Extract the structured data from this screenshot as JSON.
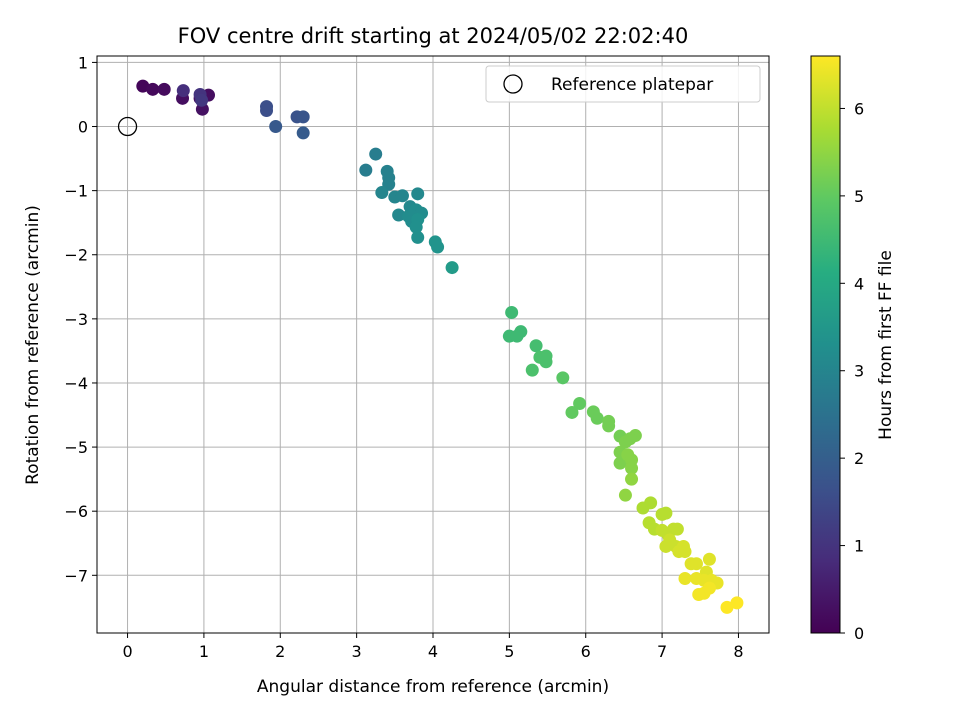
{
  "chart_data": {
    "type": "scatter",
    "title": "FOV centre drift starting at 2024/05/02 22:02:40",
    "xlabel": "Angular distance from reference (arcmin)",
    "ylabel": "Rotation from reference (arcmin)",
    "xlim": [
      -0.4,
      8.4
    ],
    "ylim": [
      -7.9,
      1.1
    ],
    "xticks": [
      0,
      1,
      2,
      3,
      4,
      5,
      6,
      7,
      8
    ],
    "yticks": [
      1,
      0,
      -1,
      -2,
      -3,
      -4,
      -5,
      -6,
      -7
    ],
    "xtick_labels": [
      "0",
      "1",
      "2",
      "3",
      "4",
      "5",
      "6",
      "7",
      "8"
    ],
    "ytick_labels": [
      "1",
      "0",
      "−1",
      "−2",
      "−3",
      "−4",
      "−5",
      "−6",
      "−7"
    ],
    "grid": true,
    "legend": {
      "placement": "top-right",
      "entries": [
        "Reference platepar"
      ]
    },
    "reference_point": {
      "x": 0,
      "y": 0,
      "label": "Reference platepar"
    },
    "colorbar": {
      "label": "Hours from first FF file",
      "colormap": "viridis",
      "range": [
        0,
        6.6
      ],
      "ticks": [
        0,
        1,
        2,
        3,
        4,
        5,
        6
      ],
      "tick_labels": [
        "0",
        "1",
        "2",
        "3",
        "4",
        "5",
        "6"
      ]
    },
    "points": [
      {
        "x": 0.2,
        "y": 0.63,
        "c": 0.1
      },
      {
        "x": 0.33,
        "y": 0.58,
        "c": 0.15
      },
      {
        "x": 0.48,
        "y": 0.58,
        "c": 0.2
      },
      {
        "x": 0.72,
        "y": 0.44,
        "c": 0.25
      },
      {
        "x": 0.95,
        "y": 0.44,
        "c": 0.3
      },
      {
        "x": 1.06,
        "y": 0.49,
        "c": 0.25
      },
      {
        "x": 0.98,
        "y": 0.27,
        "c": 0.3
      },
      {
        "x": 0.73,
        "y": 0.56,
        "c": 0.9
      },
      {
        "x": 0.95,
        "y": 0.5,
        "c": 1.0
      },
      {
        "x": 0.97,
        "y": 0.41,
        "c": 1.1
      },
      {
        "x": 1.82,
        "y": 0.31,
        "c": 1.6
      },
      {
        "x": 1.82,
        "y": 0.25,
        "c": 1.6
      },
      {
        "x": 2.22,
        "y": 0.15,
        "c": 1.7
      },
      {
        "x": 2.3,
        "y": 0.15,
        "c": 1.75
      },
      {
        "x": 1.94,
        "y": 0.0,
        "c": 1.85
      },
      {
        "x": 2.3,
        "y": -0.1,
        "c": 1.9
      },
      {
        "x": 3.25,
        "y": -0.43,
        "c": 2.8
      },
      {
        "x": 3.12,
        "y": -0.68,
        "c": 2.8
      },
      {
        "x": 3.4,
        "y": -0.7,
        "c": 2.9
      },
      {
        "x": 3.42,
        "y": -0.8,
        "c": 2.9
      },
      {
        "x": 3.42,
        "y": -0.9,
        "c": 2.9
      },
      {
        "x": 3.33,
        "y": -1.03,
        "c": 3.0
      },
      {
        "x": 3.5,
        "y": -1.1,
        "c": 3.0
      },
      {
        "x": 3.6,
        "y": -1.08,
        "c": 3.0
      },
      {
        "x": 3.8,
        "y": -1.05,
        "c": 3.1
      },
      {
        "x": 3.7,
        "y": -1.25,
        "c": 3.1
      },
      {
        "x": 3.78,
        "y": -1.3,
        "c": 3.2
      },
      {
        "x": 3.85,
        "y": -1.35,
        "c": 3.2
      },
      {
        "x": 3.55,
        "y": -1.38,
        "c": 3.1
      },
      {
        "x": 3.68,
        "y": -1.4,
        "c": 3.2
      },
      {
        "x": 3.72,
        "y": -1.48,
        "c": 3.2
      },
      {
        "x": 3.8,
        "y": -1.45,
        "c": 3.3
      },
      {
        "x": 3.78,
        "y": -1.57,
        "c": 3.3
      },
      {
        "x": 3.8,
        "y": -1.73,
        "c": 3.3
      },
      {
        "x": 4.03,
        "y": -1.8,
        "c": 3.4
      },
      {
        "x": 4.06,
        "y": -1.88,
        "c": 3.4
      },
      {
        "x": 4.25,
        "y": -2.2,
        "c": 3.6
      },
      {
        "x": 5.03,
        "y": -2.9,
        "c": 4.5
      },
      {
        "x": 5.15,
        "y": -3.2,
        "c": 4.5
      },
      {
        "x": 5.0,
        "y": -3.27,
        "c": 4.5
      },
      {
        "x": 5.1,
        "y": -3.27,
        "c": 4.5
      },
      {
        "x": 5.35,
        "y": -3.42,
        "c": 4.6
      },
      {
        "x": 5.4,
        "y": -3.6,
        "c": 4.7
      },
      {
        "x": 5.48,
        "y": -3.58,
        "c": 4.7
      },
      {
        "x": 5.48,
        "y": -3.67,
        "c": 4.7
      },
      {
        "x": 5.3,
        "y": -3.8,
        "c": 4.7
      },
      {
        "x": 5.7,
        "y": -3.92,
        "c": 4.9
      },
      {
        "x": 5.92,
        "y": -4.32,
        "c": 5.0
      },
      {
        "x": 5.82,
        "y": -4.46,
        "c": 5.0
      },
      {
        "x": 6.1,
        "y": -4.45,
        "c": 5.1
      },
      {
        "x": 6.15,
        "y": -4.55,
        "c": 5.1
      },
      {
        "x": 6.3,
        "y": -4.6,
        "c": 5.2
      },
      {
        "x": 6.3,
        "y": -4.67,
        "c": 5.2
      },
      {
        "x": 6.45,
        "y": -4.83,
        "c": 5.2
      },
      {
        "x": 6.52,
        "y": -4.92,
        "c": 5.3
      },
      {
        "x": 6.65,
        "y": -4.82,
        "c": 5.3
      },
      {
        "x": 6.58,
        "y": -4.87,
        "c": 5.3
      },
      {
        "x": 6.45,
        "y": -5.08,
        "c": 5.3
      },
      {
        "x": 6.45,
        "y": -5.25,
        "c": 5.3
      },
      {
        "x": 6.55,
        "y": -5.12,
        "c": 5.4
      },
      {
        "x": 6.6,
        "y": -5.2,
        "c": 5.4
      },
      {
        "x": 6.6,
        "y": -5.33,
        "c": 5.4
      },
      {
        "x": 6.6,
        "y": -5.5,
        "c": 5.5
      },
      {
        "x": 6.52,
        "y": -5.75,
        "c": 5.5
      },
      {
        "x": 6.75,
        "y": -5.95,
        "c": 5.8
      },
      {
        "x": 6.85,
        "y": -5.87,
        "c": 5.8
      },
      {
        "x": 6.83,
        "y": -6.18,
        "c": 5.9
      },
      {
        "x": 6.9,
        "y": -6.28,
        "c": 5.9
      },
      {
        "x": 7.0,
        "y": -6.05,
        "c": 5.9
      },
      {
        "x": 7.05,
        "y": -6.03,
        "c": 5.9
      },
      {
        "x": 7.0,
        "y": -6.3,
        "c": 6.0
      },
      {
        "x": 7.08,
        "y": -6.37,
        "c": 6.0
      },
      {
        "x": 7.15,
        "y": -6.28,
        "c": 6.0
      },
      {
        "x": 7.2,
        "y": -6.28,
        "c": 6.0
      },
      {
        "x": 7.1,
        "y": -6.45,
        "c": 6.1
      },
      {
        "x": 7.05,
        "y": -6.55,
        "c": 6.1
      },
      {
        "x": 7.18,
        "y": -6.55,
        "c": 6.1
      },
      {
        "x": 7.28,
        "y": -6.55,
        "c": 6.2
      },
      {
        "x": 7.22,
        "y": -6.63,
        "c": 6.2
      },
      {
        "x": 7.3,
        "y": -6.63,
        "c": 6.2
      },
      {
        "x": 7.38,
        "y": -6.82,
        "c": 6.3
      },
      {
        "x": 7.45,
        "y": -6.82,
        "c": 6.3
      },
      {
        "x": 7.62,
        "y": -6.75,
        "c": 6.3
      },
      {
        "x": 7.58,
        "y": -6.95,
        "c": 6.3
      },
      {
        "x": 7.3,
        "y": -7.05,
        "c": 6.4
      },
      {
        "x": 7.45,
        "y": -7.05,
        "c": 6.4
      },
      {
        "x": 7.55,
        "y": -7.08,
        "c": 6.4
      },
      {
        "x": 7.65,
        "y": -7.08,
        "c": 6.4
      },
      {
        "x": 7.72,
        "y": -7.12,
        "c": 6.4
      },
      {
        "x": 7.62,
        "y": -7.2,
        "c": 6.5
      },
      {
        "x": 7.55,
        "y": -7.28,
        "c": 6.5
      },
      {
        "x": 7.48,
        "y": -7.3,
        "c": 6.5
      },
      {
        "x": 7.98,
        "y": -7.43,
        "c": 6.6
      },
      {
        "x": 7.85,
        "y": -7.5,
        "c": 6.6
      }
    ]
  }
}
